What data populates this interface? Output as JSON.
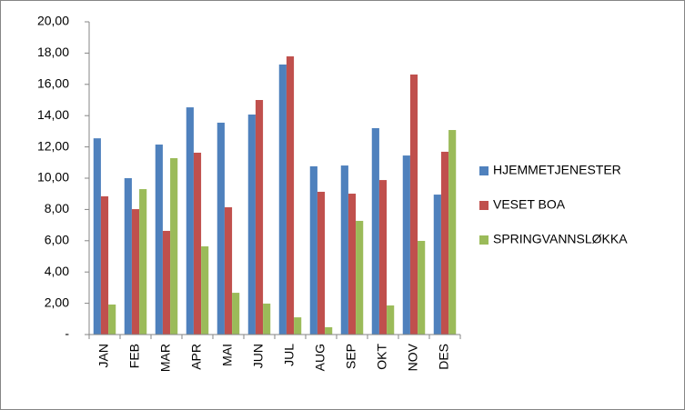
{
  "chart_data": {
    "type": "bar",
    "categories": [
      "JAN",
      "FEB",
      "MAR",
      "APR",
      "MAI",
      "JUN",
      "JUL",
      "AUG",
      "SEP",
      "OKT",
      "NOV",
      "DES"
    ],
    "series": [
      {
        "name": "HJEMMETJENESTER",
        "color": "#4f81bd",
        "values": [
          12.55,
          10.0,
          12.15,
          14.53,
          13.55,
          14.07,
          17.27,
          10.76,
          10.81,
          13.2,
          11.45,
          8.95
        ]
      },
      {
        "name": "VESET BOA",
        "color": "#c0504d",
        "values": [
          8.84,
          8.02,
          6.63,
          11.63,
          8.14,
          15.0,
          17.79,
          9.13,
          9.01,
          9.88,
          16.63,
          11.69
        ]
      },
      {
        "name": "SPRINGVANNSLØKKA",
        "color": "#9bbb59",
        "values": [
          1.92,
          9.3,
          11.28,
          5.64,
          2.67,
          1.98,
          1.1,
          0.47,
          7.27,
          1.86,
          5.99,
          13.08
        ]
      }
    ],
    "ylim": [
      0,
      20
    ],
    "yticks": [
      {
        "value": 0,
        "label": "-"
      },
      {
        "value": 2,
        "label": "2,00"
      },
      {
        "value": 4,
        "label": "4,00"
      },
      {
        "value": 6,
        "label": "6,00"
      },
      {
        "value": 8,
        "label": "8,00"
      },
      {
        "value": 10,
        "label": "10,00"
      },
      {
        "value": 12,
        "label": "12,00"
      },
      {
        "value": 14,
        "label": "14,00"
      },
      {
        "value": 16,
        "label": "16,00"
      },
      {
        "value": 18,
        "label": "18,00"
      },
      {
        "value": 20,
        "label": "20,00"
      }
    ],
    "legend": "right"
  }
}
